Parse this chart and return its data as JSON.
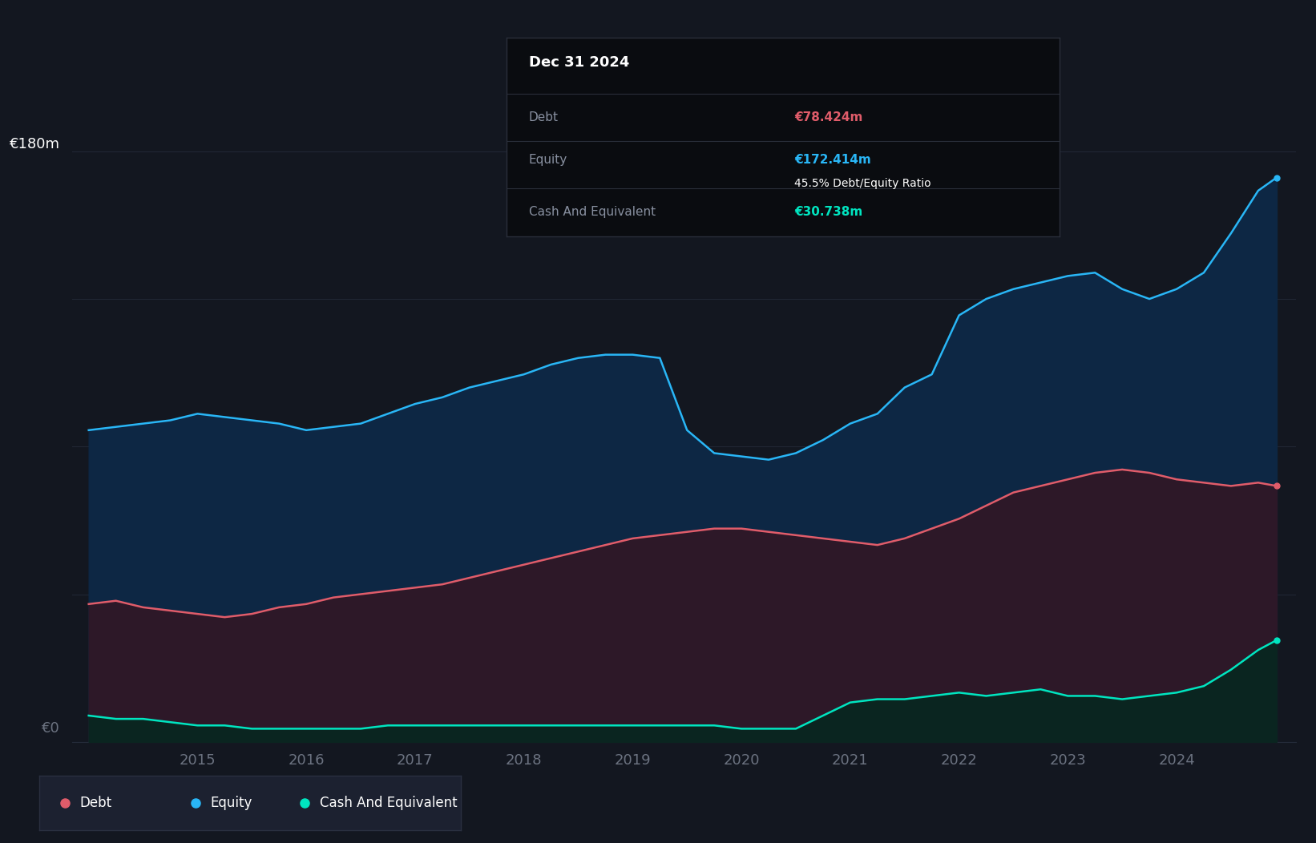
{
  "background_color": "#131720",
  "tooltip_bg": "#0a0c10",
  "tooltip_border": "#2a2f3a",
  "title_text": "Dec 31 2024",
  "tooltip_debt_label": "Debt",
  "tooltip_equity_label": "Equity",
  "tooltip_ratio": "45.5% Debt/Equity Ratio",
  "tooltip_cash_label": "Cash And Equivalent",
  "tooltip_debt_val": "€78.424m",
  "tooltip_equity_val": "€172.414m",
  "tooltip_cash_val": "€30.738m",
  "debt_color": "#e05c6a",
  "equity_color": "#29b6f6",
  "cash_color": "#00e5c0",
  "equity_fill_color": "#0d2744",
  "debt_fill_color": "#2d1828",
  "cash_fill_color": "#0a2520",
  "grid_color": "#252c3a",
  "axis_label_color": "#6b7280",
  "x_tick_positions": [
    2015,
    2016,
    2017,
    2018,
    2019,
    2020,
    2021,
    2022,
    2023,
    2024
  ],
  "years": [
    2014.0,
    2014.25,
    2014.5,
    2014.75,
    2015.0,
    2015.25,
    2015.5,
    2015.75,
    2016.0,
    2016.25,
    2016.5,
    2016.75,
    2017.0,
    2017.25,
    2017.5,
    2017.75,
    2018.0,
    2018.25,
    2018.5,
    2018.75,
    2019.0,
    2019.25,
    2019.5,
    2019.75,
    2020.0,
    2020.25,
    2020.5,
    2020.75,
    2021.0,
    2021.25,
    2021.5,
    2021.75,
    2022.0,
    2022.25,
    2022.5,
    2022.75,
    2023.0,
    2023.25,
    2023.5,
    2023.75,
    2024.0,
    2024.25,
    2024.5,
    2024.75,
    2024.92
  ],
  "equity": [
    95,
    96,
    97,
    98,
    100,
    99,
    98,
    97,
    95,
    96,
    97,
    100,
    103,
    105,
    108,
    110,
    112,
    115,
    117,
    118,
    118,
    117,
    95,
    88,
    87,
    86,
    88,
    92,
    97,
    100,
    108,
    112,
    130,
    135,
    138,
    140,
    142,
    143,
    138,
    135,
    138,
    143,
    155,
    168,
    172
  ],
  "debt": [
    42,
    43,
    41,
    40,
    39,
    38,
    39,
    41,
    42,
    44,
    45,
    46,
    47,
    48,
    50,
    52,
    54,
    56,
    58,
    60,
    62,
    63,
    64,
    65,
    65,
    64,
    63,
    62,
    61,
    60,
    62,
    65,
    68,
    72,
    76,
    78,
    80,
    82,
    83,
    82,
    80,
    79,
    78,
    79,
    78
  ],
  "cash": [
    8,
    7,
    7,
    6,
    5,
    5,
    4,
    4,
    4,
    4,
    4,
    5,
    5,
    5,
    5,
    5,
    5,
    5,
    5,
    5,
    5,
    5,
    5,
    5,
    4,
    4,
    4,
    8,
    12,
    13,
    13,
    14,
    15,
    14,
    15,
    16,
    14,
    14,
    13,
    14,
    15,
    17,
    22,
    28,
    31
  ],
  "ylim_min": 0,
  "ylim_max": 185,
  "xmin": 2013.85,
  "xmax": 2025.1,
  "legend_items": [
    "Debt",
    "Equity",
    "Cash And Equivalent"
  ],
  "legend_colors": [
    "#e05c6a",
    "#29b6f6",
    "#00e5c0"
  ]
}
